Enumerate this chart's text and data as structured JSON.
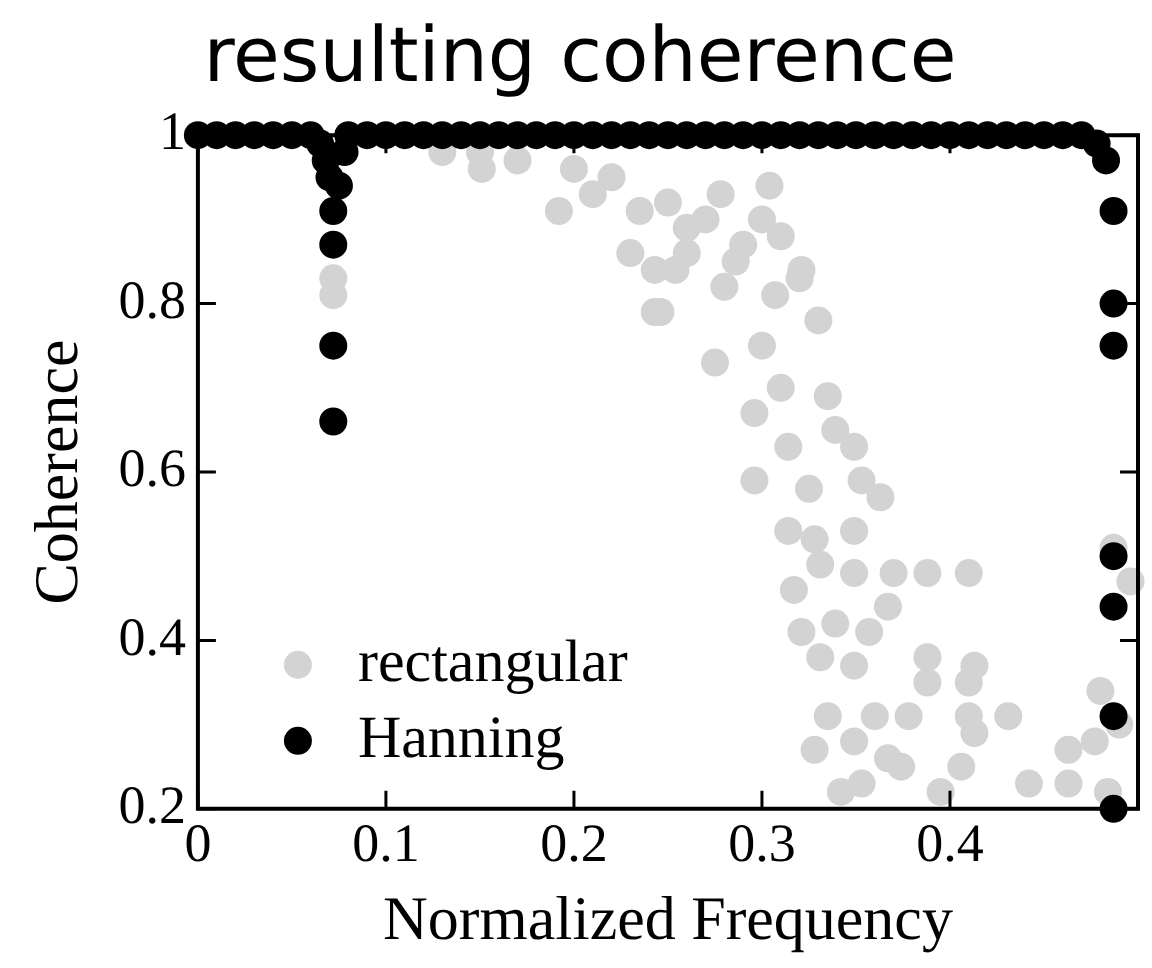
{
  "chart_data": {
    "type": "scatter",
    "title": "resulting coherence",
    "xlabel": "Normalized Frequency",
    "ylabel": "Coherence",
    "xlim": [
      0,
      0.5
    ],
    "ylim": [
      0.2,
      1
    ],
    "xticks": [
      0,
      0.1,
      0.2,
      0.3,
      0.4
    ],
    "yticks": [
      0.2,
      0.4,
      0.6,
      0.8,
      1
    ],
    "grid": false,
    "legend": "bottom left",
    "marker": "circle",
    "series": [
      {
        "name": "rectangular",
        "color": "#d3d3d3",
        "x": [
          0.072,
          0.072,
          0.13,
          0.151,
          0.15,
          0.17,
          0.192,
          0.2,
          0.22,
          0.21,
          0.235,
          0.243,
          0.243,
          0.26,
          0.27,
          0.23,
          0.26,
          0.28,
          0.29,
          0.3,
          0.31,
          0.32,
          0.33,
          0.25,
          0.278,
          0.304,
          0.254,
          0.286,
          0.321,
          0.246,
          0.307,
          0.3,
          0.275,
          0.296,
          0.31,
          0.335,
          0.314,
          0.339,
          0.349,
          0.296,
          0.325,
          0.353,
          0.363,
          0.314,
          0.349,
          0.328,
          0.331,
          0.349,
          0.317,
          0.37,
          0.388,
          0.41,
          0.367,
          0.321,
          0.339,
          0.357,
          0.331,
          0.349,
          0.388,
          0.413,
          0.388,
          0.41,
          0.335,
          0.36,
          0.378,
          0.41,
          0.431,
          0.413,
          0.328,
          0.349,
          0.367,
          0.353,
          0.374,
          0.406,
          0.342,
          0.395,
          0.442,
          0.463,
          0.477,
          0.48,
          0.463,
          0.487,
          0.496,
          0.49,
          0.484
        ],
        "values": [
          0.83,
          0.81,
          0.98,
          0.96,
          0.98,
          0.97,
          0.91,
          0.96,
          0.95,
          0.93,
          0.91,
          0.79,
          0.84,
          0.89,
          0.9,
          0.86,
          0.86,
          0.82,
          0.87,
          0.9,
          0.88,
          0.83,
          0.78,
          0.92,
          0.93,
          0.94,
          0.84,
          0.85,
          0.84,
          0.79,
          0.81,
          0.75,
          0.73,
          0.67,
          0.7,
          0.69,
          0.63,
          0.65,
          0.63,
          0.59,
          0.58,
          0.59,
          0.57,
          0.53,
          0.53,
          0.52,
          0.49,
          0.48,
          0.46,
          0.48,
          0.48,
          0.48,
          0.44,
          0.41,
          0.42,
          0.41,
          0.38,
          0.37,
          0.38,
          0.37,
          0.35,
          0.35,
          0.31,
          0.31,
          0.31,
          0.31,
          0.31,
          0.29,
          0.27,
          0.28,
          0.26,
          0.23,
          0.25,
          0.25,
          0.22,
          0.22,
          0.23,
          0.27,
          0.28,
          0.34,
          0.23,
          0.51,
          0.47,
          0.3,
          0.22
        ]
      },
      {
        "name": "Hanning",
        "color": "#000000",
        "x": [
          0,
          0.01,
          0.02,
          0.03,
          0.04,
          0.05,
          0.06,
          0.065,
          0.068,
          0.07,
          0.072,
          0.072,
          0.072,
          0.072,
          0.075,
          0.078,
          0.08,
          0.09,
          0.1,
          0.11,
          0.12,
          0.13,
          0.14,
          0.15,
          0.16,
          0.17,
          0.18,
          0.19,
          0.2,
          0.21,
          0.22,
          0.23,
          0.24,
          0.25,
          0.26,
          0.27,
          0.28,
          0.29,
          0.3,
          0.31,
          0.32,
          0.33,
          0.34,
          0.35,
          0.36,
          0.37,
          0.38,
          0.39,
          0.4,
          0.41,
          0.42,
          0.43,
          0.44,
          0.45,
          0.46,
          0.47,
          0.478,
          0.483,
          0.487,
          0.487,
          0.487,
          0.487,
          0.487,
          0.487,
          0.487
        ],
        "values": [
          1,
          1,
          1,
          1,
          1,
          1,
          1,
          0.99,
          0.97,
          0.95,
          0.91,
          0.87,
          0.75,
          0.66,
          0.94,
          0.98,
          1,
          1,
          1,
          1,
          1,
          1,
          1,
          1,
          1,
          1,
          1,
          1,
          1,
          1,
          1,
          1,
          1,
          1,
          1,
          1,
          1,
          1,
          1,
          1,
          1,
          1,
          1,
          1,
          1,
          1,
          1,
          1,
          1,
          1,
          1,
          1,
          1,
          1,
          1,
          1,
          0.99,
          0.97,
          0.91,
          0.8,
          0.75,
          0.5,
          0.44,
          0.31,
          0.2
        ]
      }
    ]
  }
}
